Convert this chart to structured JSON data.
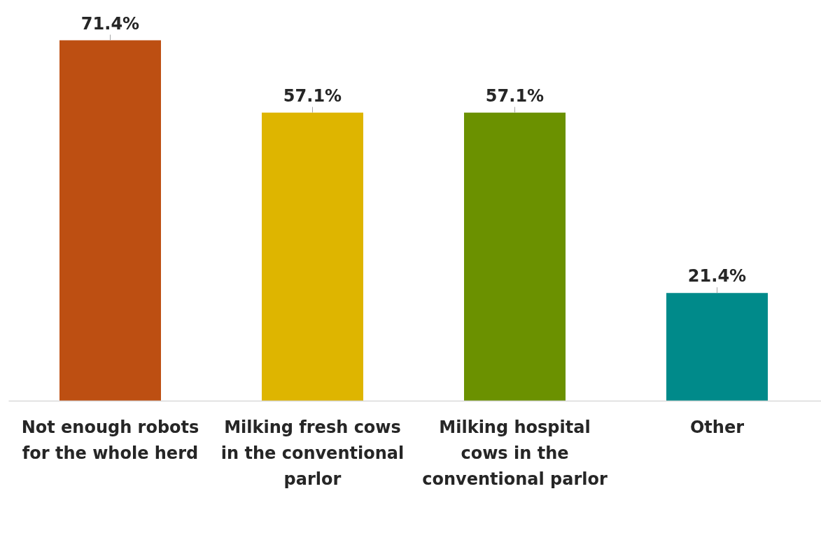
{
  "chart_data": {
    "type": "bar",
    "categories": [
      "Not enough robots for the whole herd",
      "Milking fresh cows in the conventional parlor",
      "Milking hospital cows in the conventional parlor",
      "Other"
    ],
    "values": [
      71.4,
      57.1,
      57.1,
      21.4
    ],
    "colors": [
      "#bd4f12",
      "#deb500",
      "#6b9100",
      "#008a8a"
    ],
    "value_labels": [
      "71.4%",
      "57.1%",
      "57.1%",
      "21.4%"
    ],
    "grid": false
  }
}
